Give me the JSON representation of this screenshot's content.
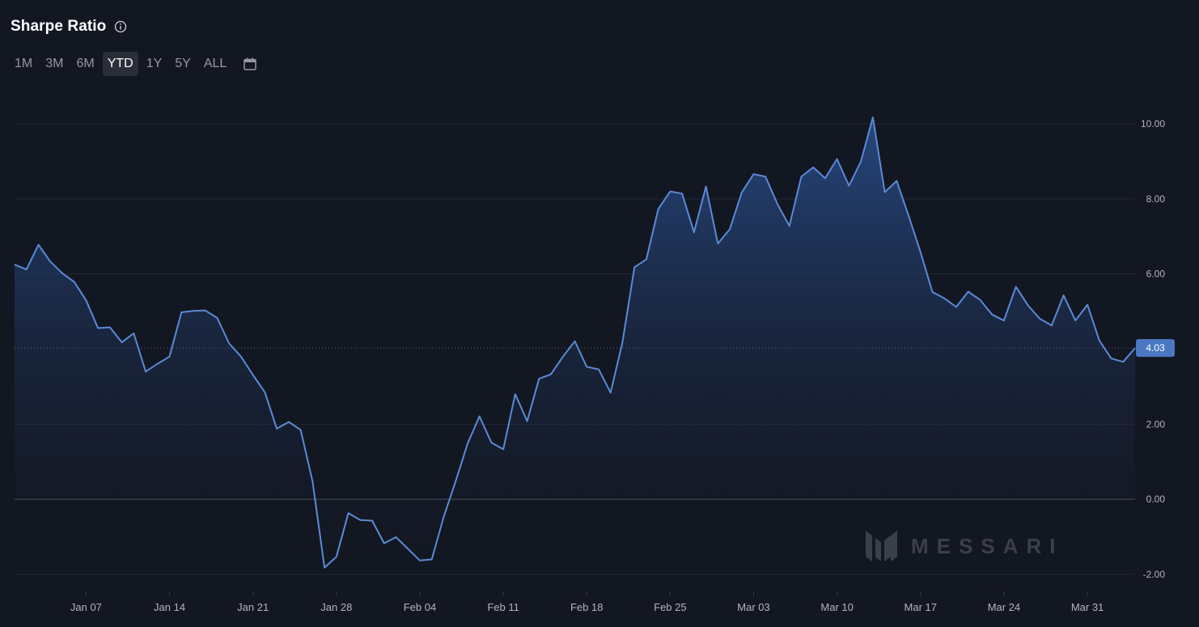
{
  "header": {
    "title": "Sharpe Ratio",
    "info_icon": "info-icon",
    "ranges": [
      "1M",
      "3M",
      "6M",
      "YTD",
      "1Y",
      "5Y",
      "ALL"
    ],
    "active_range": "YTD",
    "calendar_icon": "calendar-icon"
  },
  "watermark": "MESSARI",
  "colors": {
    "background": "#131722",
    "line": "#5b8ad6",
    "grid": "#262a36",
    "zero_line": "#3a3f4b",
    "badge": "#4a78c2",
    "tick_text": "#b2b5be"
  },
  "chart_data": {
    "type": "area",
    "title": "Sharpe Ratio",
    "xlabel": "",
    "ylabel": "",
    "ylim": [
      -2.0,
      10.0
    ],
    "yticks": [
      10.0,
      8.0,
      6.0,
      4.0,
      2.0,
      0.0,
      -2.0
    ],
    "ytick_labels": [
      "10.00",
      "8.00",
      "6.00",
      "2.00",
      "0.00",
      "-2.00"
    ],
    "last_value_label": "4.03",
    "xtick_labels": [
      {
        "label": "Jan 07",
        "x": "2024-01-07"
      },
      {
        "label": "Jan 14",
        "x": "2024-01-14"
      },
      {
        "label": "Jan 21",
        "x": "2024-01-21"
      },
      {
        "label": "Jan 28",
        "x": "2024-01-28"
      },
      {
        "label": "Feb 04",
        "x": "2024-02-04"
      },
      {
        "label": "Feb 11",
        "x": "2024-02-11"
      },
      {
        "label": "Feb 18",
        "x": "2024-02-18"
      },
      {
        "label": "Feb 25",
        "x": "2024-02-25"
      },
      {
        "label": "Mar 03",
        "x": "2024-03-03"
      },
      {
        "label": "Mar 10",
        "x": "2024-03-10"
      },
      {
        "label": "Mar 17",
        "x": "2024-03-17"
      },
      {
        "label": "Mar 24",
        "x": "2024-03-24"
      },
      {
        "label": "Mar 31",
        "x": "2024-03-31"
      }
    ],
    "grid": true,
    "series": [
      {
        "x": [
          "2024-01-01",
          "2024-01-02",
          "2024-01-03",
          "2024-01-04",
          "2024-01-05",
          "2024-01-06",
          "2024-01-07",
          "2024-01-08",
          "2024-01-09",
          "2024-01-10",
          "2024-01-11",
          "2024-01-12",
          "2024-01-13",
          "2024-01-14",
          "2024-01-15",
          "2024-01-16",
          "2024-01-17",
          "2024-01-18",
          "2024-01-19",
          "2024-01-20",
          "2024-01-21",
          "2024-01-22",
          "2024-01-23",
          "2024-01-24",
          "2024-01-25",
          "2024-01-26",
          "2024-01-27",
          "2024-01-28",
          "2024-01-29",
          "2024-01-30",
          "2024-01-31",
          "2024-02-01",
          "2024-02-02",
          "2024-02-03",
          "2024-02-04",
          "2024-02-05",
          "2024-02-06",
          "2024-02-07",
          "2024-02-08",
          "2024-02-09",
          "2024-02-10",
          "2024-02-11",
          "2024-02-12",
          "2024-02-13",
          "2024-02-14",
          "2024-02-15",
          "2024-02-16",
          "2024-02-17",
          "2024-02-18",
          "2024-02-19",
          "2024-02-20",
          "2024-02-21",
          "2024-02-22",
          "2024-02-23",
          "2024-02-24",
          "2024-02-25",
          "2024-02-26",
          "2024-02-27",
          "2024-02-28",
          "2024-02-29",
          "2024-03-01",
          "2024-03-02",
          "2024-03-03",
          "2024-03-04",
          "2024-03-05",
          "2024-03-06",
          "2024-03-07",
          "2024-03-08",
          "2024-03-09",
          "2024-03-10",
          "2024-03-11",
          "2024-03-12",
          "2024-03-13",
          "2024-03-14",
          "2024-03-15",
          "2024-03-16",
          "2024-03-17",
          "2024-03-18",
          "2024-03-19",
          "2024-03-20",
          "2024-03-21",
          "2024-03-22",
          "2024-03-23",
          "2024-03-24",
          "2024-03-25",
          "2024-03-26",
          "2024-03-27",
          "2024-03-28",
          "2024-03-29",
          "2024-03-30",
          "2024-03-31",
          "2024-04-01",
          "2024-04-02",
          "2024-04-03",
          "2024-04-04"
        ],
        "values": [
          6.25,
          6.12,
          6.78,
          6.33,
          6.02,
          5.79,
          5.3,
          4.56,
          4.58,
          4.18,
          4.42,
          3.4,
          3.61,
          3.8,
          4.98,
          5.02,
          5.03,
          4.83,
          4.15,
          3.8,
          3.31,
          2.85,
          1.88,
          2.06,
          1.85,
          0.47,
          -1.82,
          -1.53,
          -0.37,
          -0.55,
          -0.57,
          -1.17,
          -1.01,
          -1.32,
          -1.63,
          -1.6,
          -0.47,
          0.48,
          1.48,
          2.21,
          1.51,
          1.33,
          2.8,
          2.08,
          3.21,
          3.33,
          3.8,
          4.21,
          3.53,
          3.46,
          2.84,
          4.18,
          6.18,
          6.39,
          7.73,
          8.2,
          8.14,
          7.11,
          8.33,
          6.81,
          7.19,
          8.17,
          8.66,
          8.59,
          7.86,
          7.28,
          8.59,
          8.84,
          8.55,
          9.06,
          8.35,
          9.0,
          10.17,
          8.18,
          8.48,
          7.55,
          6.58,
          5.52,
          5.35,
          5.12,
          5.53,
          5.31,
          4.92,
          4.76,
          5.66,
          5.17,
          4.81,
          4.63,
          5.43,
          4.76,
          5.18,
          4.23,
          3.75,
          3.66,
          4.03
        ]
      }
    ]
  }
}
